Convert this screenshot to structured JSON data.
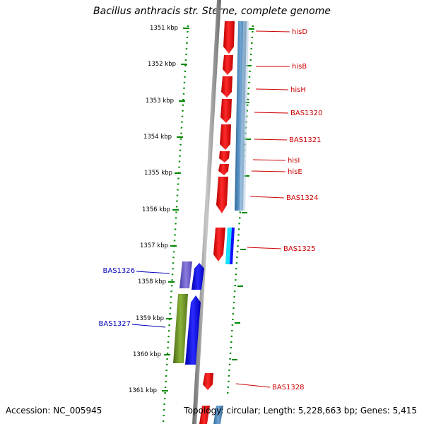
{
  "header": {
    "title": "Bacillus anthracis str. Sterne, complete genome"
  },
  "footer": {
    "accession": "Accession: NC_005945",
    "topology": "Topology: circular; Length: 5,228,663 bp; Genes: 5,415"
  },
  "ruler": {
    "tick_labels": [
      "1351 kbp",
      "1352 kbp",
      "1353 kbp",
      "1354 kbp",
      "1355 kbp",
      "1356 kbp",
      "1357 kbp",
      "1358 kbp",
      "1359 kbp",
      "1360 kbp",
      "1361 kbp"
    ],
    "color": "#008800"
  },
  "colors": {
    "backbone": "#888888",
    "forward_gene": "#ff0000",
    "reverse_strand_band": "#4682b4",
    "blue_gene": "#0000ff",
    "purple_gene": "#6a5acd",
    "olive_gene": "#6b8e23",
    "cyan_gene": "#00ffff",
    "red_label": "#cc0000",
    "blue_label": "#0000bb"
  },
  "genes_right": [
    {
      "label": "hisD"
    },
    {
      "label": "hisB"
    },
    {
      "label": "hisH"
    },
    {
      "label": "BAS1320"
    },
    {
      "label": "BAS1321"
    },
    {
      "label": "hisI"
    },
    {
      "label": "hisE"
    },
    {
      "label": "BAS1324"
    },
    {
      "label": "BAS1325"
    },
    {
      "label": "BAS1328"
    }
  ],
  "genes_left": [
    {
      "label": "BAS1326"
    },
    {
      "label": "BAS1327"
    }
  ]
}
